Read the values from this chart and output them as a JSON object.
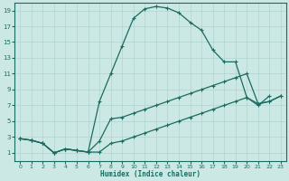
{
  "xlabel": "Humidex (Indice chaleur)",
  "bg_color": "#cce8e4",
  "grid_color": "#b0d4d0",
  "line_color": "#1a6b60",
  "xlim": [
    -0.5,
    23.5
  ],
  "ylim": [
    0,
    20
  ],
  "xticks": [
    0,
    1,
    2,
    3,
    4,
    5,
    6,
    7,
    8,
    9,
    10,
    11,
    12,
    13,
    14,
    15,
    16,
    17,
    18,
    19,
    20,
    21,
    22,
    23
  ],
  "yticks": [
    1,
    3,
    5,
    7,
    9,
    11,
    13,
    15,
    17,
    19
  ],
  "series1_x": [
    0,
    1,
    2,
    3,
    4,
    5,
    6,
    7,
    8,
    9,
    10,
    11,
    12,
    13,
    14,
    15,
    16,
    17,
    18,
    19,
    20,
    21,
    22,
    23
  ],
  "series1_y": [
    2.8,
    2.6,
    2.2,
    1.0,
    1.5,
    1.3,
    1.1,
    1.1,
    2.2,
    2.5,
    3.0,
    3.5,
    4.0,
    4.5,
    5.0,
    5.5,
    6.0,
    6.5,
    7.0,
    7.5,
    8.0,
    7.2,
    7.5,
    8.2
  ],
  "series2_x": [
    0,
    1,
    2,
    3,
    4,
    5,
    6,
    7,
    8,
    9,
    10,
    11,
    12,
    13,
    14,
    15,
    16,
    17,
    18,
    19,
    20,
    21,
    22,
    23
  ],
  "series2_y": [
    2.8,
    2.6,
    2.2,
    1.0,
    1.5,
    1.3,
    1.1,
    2.5,
    5.3,
    5.5,
    6.0,
    6.5,
    7.0,
    7.5,
    8.0,
    8.5,
    9.0,
    9.5,
    10.0,
    10.5,
    11.0,
    7.2,
    7.5,
    8.2
  ],
  "series3_x": [
    0,
    1,
    2,
    3,
    4,
    5,
    6,
    7,
    8,
    9,
    10,
    11,
    12,
    13,
    14,
    15,
    16,
    17,
    18,
    19,
    20,
    21,
    22,
    23
  ],
  "series3_y": [
    2.8,
    2.6,
    2.2,
    1.0,
    1.5,
    1.3,
    1.1,
    7.5,
    11.0,
    14.5,
    18.0,
    19.2,
    19.5,
    19.3,
    18.7,
    17.5,
    16.5,
    14.0,
    12.5,
    12.5,
    8.0,
    7.0,
    8.2,
    null
  ]
}
